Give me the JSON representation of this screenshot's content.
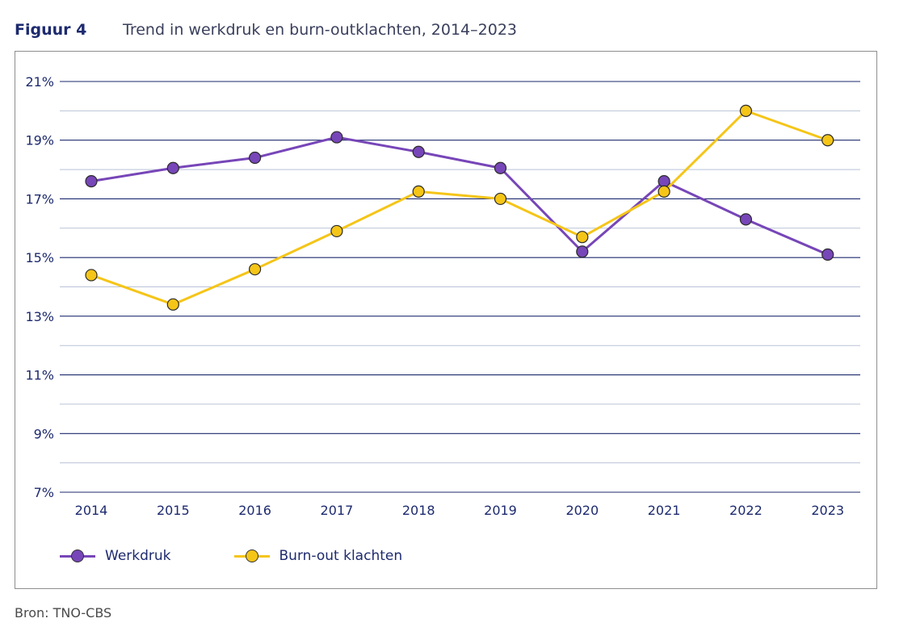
{
  "figure": {
    "label": "Figuur 4",
    "title": "Trend in werkdruk en burn-outklachten, 2014–2023"
  },
  "chart_data": {
    "type": "line",
    "categories": [
      "2014",
      "2015",
      "2016",
      "2017",
      "2018",
      "2019",
      "2020",
      "2021",
      "2022",
      "2023"
    ],
    "series": [
      {
        "name": "Werkdruk",
        "color": "#7746b8",
        "values": [
          17.6,
          18.05,
          18.4,
          19.1,
          18.6,
          18.05,
          15.2,
          17.6,
          16.3,
          15.1
        ]
      },
      {
        "name": "Burn-out klachten",
        "color": "#f5c518",
        "values": [
          14.4,
          13.4,
          14.6,
          15.9,
          17.25,
          17.0,
          15.7,
          17.25,
          20.0,
          19.0
        ]
      }
    ],
    "ylim": [
      7,
      21
    ],
    "yticks": [
      "7%",
      "9%",
      "11%",
      "13%",
      "15%",
      "17%",
      "19%",
      "21%"
    ],
    "grid": true,
    "legend_position": "bottom-left"
  },
  "source": "Bron: TNO-CBS"
}
